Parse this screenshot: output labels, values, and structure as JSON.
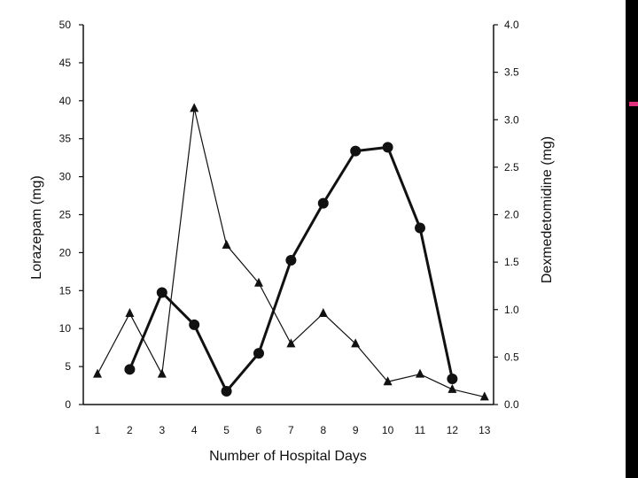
{
  "colors": {
    "ink": "#111111",
    "strip": "#000000",
    "accent": "#e2317f"
  },
  "chart_data": {
    "type": "line",
    "title": "",
    "xlabel": "Number of Hospital Days",
    "ylabel_left": "Lorazepam (mg)",
    "ylabel_right": "Dexmedetomidine (mg)",
    "categories": [
      1,
      2,
      3,
      4,
      5,
      6,
      7,
      8,
      9,
      10,
      11,
      12,
      13
    ],
    "x_tick_labels": [
      "1",
      "2",
      "3",
      "4",
      "5",
      "6",
      "7",
      "8",
      "9",
      "10",
      "11",
      "12",
      "13"
    ],
    "y_left_ticks": [
      "0",
      "5",
      "10",
      "15",
      "20",
      "25",
      "30",
      "35",
      "40",
      "45",
      "50"
    ],
    "y_right_ticks": [
      "0.0",
      "0.5",
      "1.0",
      "1.5",
      "2.0",
      "2.5",
      "3.0",
      "3.5",
      "4.0"
    ],
    "ylim_left": [
      0,
      50
    ],
    "ylim_right": [
      0,
      4.0
    ],
    "grid": false,
    "series": [
      {
        "marker": "triangle",
        "axis": "left",
        "line": "thin",
        "x": [
          1,
          2,
          3,
          4,
          5,
          6,
          7,
          8,
          9,
          10,
          11,
          12,
          13
        ],
        "values": [
          4,
          12,
          4,
          39,
          21,
          16,
          8,
          12,
          8,
          3,
          4,
          2,
          1
        ]
      },
      {
        "marker": "circle",
        "axis": "right",
        "line": "thick",
        "x": [
          2,
          3,
          4,
          5,
          6,
          7,
          8,
          9,
          10,
          11,
          12
        ],
        "values": [
          0.37,
          1.18,
          0.84,
          0.14,
          0.54,
          1.52,
          2.12,
          2.67,
          2.71,
          1.86,
          0.27
        ]
      }
    ]
  }
}
